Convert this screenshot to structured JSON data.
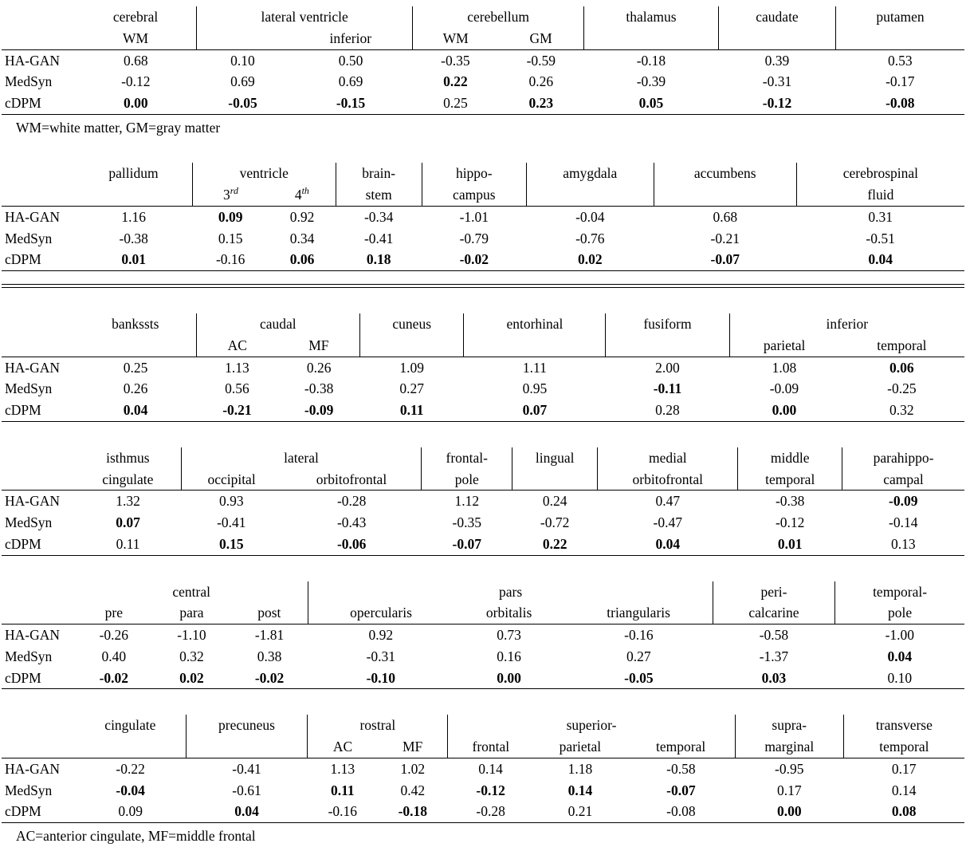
{
  "page": {
    "background": "#ffffff",
    "text_color": "#000000",
    "rule_color": "#000000"
  },
  "tables": [
    {
      "id": "table-subcortical-1",
      "groups": [
        {
          "top": "cerebral",
          "bottom": [
            "WM"
          ]
        },
        {
          "top": "lateral ventricle",
          "bottom": [
            "",
            "inferior"
          ]
        },
        {
          "top": "cerebellum",
          "bottom": [
            "WM",
            "GM"
          ]
        },
        {
          "top": "thalamus",
          "bottom": [
            ""
          ]
        },
        {
          "top": "caudate",
          "bottom": [
            ""
          ]
        },
        {
          "top": "putamen",
          "bottom": [
            ""
          ]
        }
      ],
      "rows": [
        {
          "label": "HA-GAN",
          "cells": [
            [
              "0.68",
              0
            ],
            [
              "0.10",
              0
            ],
            [
              "0.50",
              0
            ],
            [
              "-0.35",
              0
            ],
            [
              "-0.59",
              0
            ],
            [
              "-0.18",
              0
            ],
            [
              "0.39",
              0
            ],
            [
              "0.53",
              0
            ]
          ]
        },
        {
          "label": "MedSyn",
          "cells": [
            [
              "-0.12",
              0
            ],
            [
              "0.69",
              0
            ],
            [
              "0.69",
              0
            ],
            [
              "0.22",
              1
            ],
            [
              "0.26",
              0
            ],
            [
              "-0.39",
              0
            ],
            [
              "-0.31",
              0
            ],
            [
              "-0.17",
              0
            ]
          ]
        },
        {
          "label": "cDPM",
          "cells": [
            [
              "0.00",
              1
            ],
            [
              "-0.05",
              1
            ],
            [
              "-0.15",
              1
            ],
            [
              "0.25",
              0
            ],
            [
              "0.23",
              1
            ],
            [
              "0.05",
              1
            ],
            [
              "-0.12",
              1
            ],
            [
              "-0.08",
              1
            ]
          ]
        }
      ],
      "footnote": "WM=white matter, GM=gray matter"
    },
    {
      "id": "table-subcortical-2",
      "groups": [
        {
          "top": "pallidum",
          "bottom": [
            ""
          ]
        },
        {
          "top": "ventricle",
          "bottom": [
            "3^rd",
            "4^th"
          ]
        },
        {
          "top": "brain-",
          "bottom": [
            "stem"
          ]
        },
        {
          "top": "hippo-",
          "bottom": [
            "campus"
          ]
        },
        {
          "top": "amygdala",
          "bottom": [
            ""
          ]
        },
        {
          "top": "accumbens",
          "bottom": [
            ""
          ]
        },
        {
          "top": "cerebrospinal",
          "bottom": [
            "fluid"
          ]
        }
      ],
      "rows": [
        {
          "label": "HA-GAN",
          "cells": [
            [
              "1.16",
              0
            ],
            [
              "0.09",
              1
            ],
            [
              "0.92",
              0
            ],
            [
              "-0.34",
              0
            ],
            [
              "-1.01",
              0
            ],
            [
              "-0.04",
              0
            ],
            [
              "0.68",
              0
            ],
            [
              "0.31",
              0
            ]
          ]
        },
        {
          "label": "MedSyn",
          "cells": [
            [
              "-0.38",
              0
            ],
            [
              "0.15",
              0
            ],
            [
              "0.34",
              0
            ],
            [
              "-0.41",
              0
            ],
            [
              "-0.79",
              0
            ],
            [
              "-0.76",
              0
            ],
            [
              "-0.21",
              0
            ],
            [
              "-0.51",
              0
            ]
          ]
        },
        {
          "label": "cDPM",
          "cells": [
            [
              "0.01",
              1
            ],
            [
              "-0.16",
              0
            ],
            [
              "0.06",
              1
            ],
            [
              "0.18",
              1
            ],
            [
              "-0.02",
              1
            ],
            [
              "0.02",
              1
            ],
            [
              "-0.07",
              1
            ],
            [
              "0.04",
              1
            ]
          ]
        }
      ],
      "after_rule": "double"
    },
    {
      "id": "table-cortical-1",
      "groups": [
        {
          "top": "bankssts",
          "bottom": [
            ""
          ]
        },
        {
          "top": "caudal",
          "bottom": [
            "AC",
            "MF"
          ]
        },
        {
          "top": "cuneus",
          "bottom": [
            ""
          ]
        },
        {
          "top": "entorhinal",
          "bottom": [
            ""
          ]
        },
        {
          "top": "fusiform",
          "bottom": [
            ""
          ]
        },
        {
          "top": "inferior",
          "bottom": [
            "parietal",
            "temporal"
          ]
        }
      ],
      "rows": [
        {
          "label": "HA-GAN",
          "cells": [
            [
              "0.25",
              0
            ],
            [
              "1.13",
              0
            ],
            [
              "0.26",
              0
            ],
            [
              "1.09",
              0
            ],
            [
              "1.11",
              0
            ],
            [
              "2.00",
              0
            ],
            [
              "1.08",
              0
            ],
            [
              "0.06",
              1
            ]
          ]
        },
        {
          "label": "MedSyn",
          "cells": [
            [
              "0.26",
              0
            ],
            [
              "0.56",
              0
            ],
            [
              "-0.38",
              0
            ],
            [
              "0.27",
              0
            ],
            [
              "0.95",
              0
            ],
            [
              "-0.11",
              1
            ],
            [
              "-0.09",
              0
            ],
            [
              "-0.25",
              0
            ]
          ]
        },
        {
          "label": "cDPM",
          "cells": [
            [
              "0.04",
              1
            ],
            [
              "-0.21",
              1
            ],
            [
              "-0.09",
              1
            ],
            [
              "0.11",
              1
            ],
            [
              "0.07",
              1
            ],
            [
              "0.28",
              0
            ],
            [
              "0.00",
              1
            ],
            [
              "0.32",
              0
            ]
          ]
        }
      ]
    },
    {
      "id": "table-cortical-2",
      "groups": [
        {
          "top": "isthmus",
          "bottom": [
            "cingulate"
          ]
        },
        {
          "top": "lateral",
          "bottom": [
            "occipital",
            "orbitofrontal"
          ]
        },
        {
          "top": "frontal-",
          "bottom": [
            "pole"
          ]
        },
        {
          "top": "lingual",
          "bottom": [
            ""
          ]
        },
        {
          "top": "medial",
          "bottom": [
            "orbitofrontal"
          ]
        },
        {
          "top": "middle",
          "bottom": [
            "temporal"
          ]
        },
        {
          "top": "parahippo-",
          "bottom": [
            "campal"
          ]
        }
      ],
      "rows": [
        {
          "label": "HA-GAN",
          "cells": [
            [
              "1.32",
              0
            ],
            [
              "0.93",
              0
            ],
            [
              "-0.28",
              0
            ],
            [
              "1.12",
              0
            ],
            [
              "0.24",
              0
            ],
            [
              "0.47",
              0
            ],
            [
              "-0.38",
              0
            ],
            [
              "-0.09",
              1
            ]
          ]
        },
        {
          "label": "MedSyn",
          "cells": [
            [
              "0.07",
              1
            ],
            [
              "-0.41",
              0
            ],
            [
              "-0.43",
              0
            ],
            [
              "-0.35",
              0
            ],
            [
              "-0.72",
              0
            ],
            [
              "-0.47",
              0
            ],
            [
              "-0.12",
              0
            ],
            [
              "-0.14",
              0
            ]
          ]
        },
        {
          "label": "cDPM",
          "cells": [
            [
              "0.11",
              0
            ],
            [
              "0.15",
              1
            ],
            [
              "-0.06",
              1
            ],
            [
              "-0.07",
              1
            ],
            [
              "0.22",
              1
            ],
            [
              "0.04",
              1
            ],
            [
              "0.01",
              1
            ],
            [
              "0.13",
              0
            ]
          ]
        }
      ]
    },
    {
      "id": "table-cortical-3",
      "groups": [
        {
          "top": "central",
          "bottom": [
            "pre",
            "para",
            "post"
          ]
        },
        {
          "top": "pars",
          "bottom": [
            "opercularis",
            "orbitalis",
            "triangularis"
          ]
        },
        {
          "top": "peri-",
          "bottom": [
            "calcarine"
          ]
        },
        {
          "top": "temporal-",
          "bottom": [
            "pole"
          ]
        }
      ],
      "rows": [
        {
          "label": "HA-GAN",
          "cells": [
            [
              "-0.26",
              0
            ],
            [
              "-1.10",
              0
            ],
            [
              "-1.81",
              0
            ],
            [
              "0.92",
              0
            ],
            [
              "0.73",
              0
            ],
            [
              "-0.16",
              0
            ],
            [
              "-0.58",
              0
            ],
            [
              "-1.00",
              0
            ]
          ]
        },
        {
          "label": "MedSyn",
          "cells": [
            [
              "0.40",
              0
            ],
            [
              "0.32",
              0
            ],
            [
              "0.38",
              0
            ],
            [
              "-0.31",
              0
            ],
            [
              "0.16",
              0
            ],
            [
              "0.27",
              0
            ],
            [
              "-1.37",
              0
            ],
            [
              "0.04",
              1
            ]
          ]
        },
        {
          "label": "cDPM",
          "cells": [
            [
              "-0.02",
              1
            ],
            [
              "0.02",
              1
            ],
            [
              "-0.02",
              1
            ],
            [
              "-0.10",
              1
            ],
            [
              "0.00",
              1
            ],
            [
              "-0.05",
              1
            ],
            [
              "0.03",
              1
            ],
            [
              "0.10",
              0
            ]
          ]
        }
      ]
    },
    {
      "id": "table-cortical-4",
      "groups": [
        {
          "top": "cingulate",
          "bottom": [
            ""
          ]
        },
        {
          "top": "precuneus",
          "bottom": [
            ""
          ]
        },
        {
          "top": "rostral",
          "bottom": [
            "AC",
            "MF"
          ]
        },
        {
          "top": "superior-",
          "bottom": [
            "frontal",
            "parietal",
            "temporal"
          ]
        },
        {
          "top": "supra-",
          "bottom": [
            "marginal"
          ]
        },
        {
          "top": "transverse",
          "bottom": [
            "temporal"
          ]
        }
      ],
      "rows": [
        {
          "label": "HA-GAN",
          "cells": [
            [
              "-0.22",
              0
            ],
            [
              "-0.41",
              0
            ],
            [
              "1.13",
              0
            ],
            [
              "1.02",
              0
            ],
            [
              "0.14",
              0
            ],
            [
              "1.18",
              0
            ],
            [
              "-0.58",
              0
            ],
            [
              "-0.95",
              0
            ],
            [
              "0.17",
              0
            ]
          ]
        },
        {
          "label": "MedSyn",
          "cells": [
            [
              "-0.04",
              1
            ],
            [
              "-0.61",
              0
            ],
            [
              "0.11",
              1
            ],
            [
              "0.42",
              0
            ],
            [
              "-0.12",
              1
            ],
            [
              "0.14",
              1
            ],
            [
              "-0.07",
              1
            ],
            [
              "0.17",
              0
            ],
            [
              "0.14",
              0
            ]
          ]
        },
        {
          "label": "cDPM",
          "cells": [
            [
              "0.09",
              0
            ],
            [
              "0.04",
              1
            ],
            [
              "-0.16",
              0
            ],
            [
              "-0.18",
              1
            ],
            [
              "-0.28",
              0
            ],
            [
              "0.21",
              0
            ],
            [
              "-0.08",
              0
            ],
            [
              "0.00",
              1
            ],
            [
              "0.08",
              1
            ]
          ]
        }
      ],
      "footnote": "AC=anterior cingulate, MF=middle frontal"
    }
  ]
}
